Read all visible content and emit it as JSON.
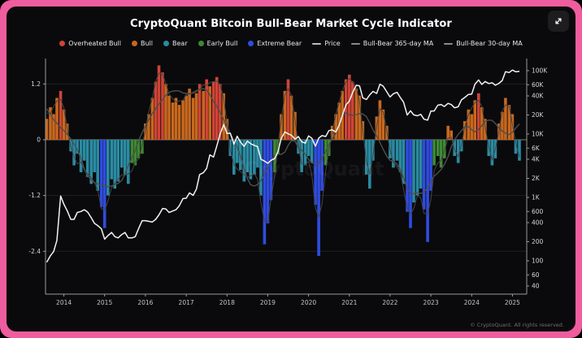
{
  "theme": {
    "frame_pink": "#ef5d9f",
    "panel_bg": "#0a0a0c",
    "price_line": "#f3f3f3",
    "ma_line": "#4e4e4e"
  },
  "watermark": "CryptoQuant",
  "footer": {
    "copyright": "© CryptoQuant. All rights reserved."
  },
  "legend": [
    {
      "key": "ob",
      "label": "Overheated Bull",
      "color": "#cf4436",
      "type": "dot"
    },
    {
      "key": "b",
      "label": "Bull",
      "color": "#c8681e",
      "type": "dot"
    },
    {
      "key": "br",
      "label": "Bear",
      "color": "#2a8ba2",
      "type": "dot"
    },
    {
      "key": "eb",
      "label": "Early Bull",
      "color": "#3e8a33",
      "type": "dot"
    },
    {
      "key": "xb",
      "label": "Extreme Bear",
      "color": "#2f4ce0",
      "type": "dot"
    },
    {
      "key": "price",
      "label": "Price",
      "color": "#bdbdbd",
      "type": "line"
    },
    {
      "key": "ma365",
      "label": "Bull-Bear 365-day MA",
      "color": "#8a8a8a",
      "type": "line"
    },
    {
      "key": "ma30",
      "label": "Bull-Bear 30-day MA",
      "color": "#8a8a8a",
      "type": "line"
    }
  ],
  "chart_data": {
    "type": "combo",
    "components": [
      "bar",
      "line"
    ],
    "title": "CryptoQuant Bitcoin Bull-Bear Market Cycle Indicator",
    "x_axis": {
      "ticks": [
        2014,
        2015,
        2016,
        2017,
        2018,
        2019,
        2020,
        2021,
        2022,
        2023,
        2024,
        2025
      ],
      "range": [
        2013.55,
        2025.35
      ]
    },
    "left_axis": {
      "ticks": [
        1.2,
        0,
        -1.2,
        -2.4
      ],
      "range": [
        -3.3,
        1.7
      ]
    },
    "right_axis": {
      "scale": "log",
      "range": [
        30,
        147000
      ],
      "ticks": [
        [
          100000,
          "100K"
        ],
        [
          60000,
          "60K"
        ],
        [
          40000,
          "40K"
        ],
        [
          20000,
          "20K"
        ],
        [
          10000,
          "10K"
        ],
        [
          6000,
          "6K"
        ],
        [
          4000,
          "4K"
        ],
        [
          2000,
          "2K"
        ],
        [
          1000,
          "1K"
        ],
        [
          600,
          "600"
        ],
        [
          400,
          "400"
        ],
        [
          200,
          "200"
        ],
        [
          100,
          "100"
        ],
        [
          60,
          "60"
        ],
        [
          40,
          "40"
        ]
      ]
    },
    "colors": {
      "ob": "#cf4436",
      "b": "#c8681e",
      "br": "#2a8ba2",
      "eb": "#3e8a33",
      "xb": "#2f4ce0"
    },
    "ma_series": [
      {
        "name": "Bull-Bear 365-day MA",
        "smooth_window_points": 6
      },
      {
        "name": "Bull-Bear 30-day MA",
        "smooth_window_points": 1
      }
    ],
    "indicator_bars": [
      [
        2013.58,
        0.45,
        "b"
      ],
      [
        2013.67,
        0.7,
        "b"
      ],
      [
        2013.75,
        0.55,
        "b"
      ],
      [
        2013.83,
        0.9,
        "b"
      ],
      [
        2013.92,
        1.05,
        "ob"
      ],
      [
        2014.0,
        0.65,
        "b"
      ],
      [
        2014.08,
        0.35,
        "b"
      ],
      [
        2014.17,
        -0.25,
        "br"
      ],
      [
        2014.25,
        -0.55,
        "br"
      ],
      [
        2014.33,
        -0.3,
        "br"
      ],
      [
        2014.42,
        -0.7,
        "br"
      ],
      [
        2014.5,
        -0.45,
        "br"
      ],
      [
        2014.58,
        -0.8,
        "br"
      ],
      [
        2014.67,
        -0.95,
        "br"
      ],
      [
        2014.75,
        -0.7,
        "br"
      ],
      [
        2014.83,
        -1.1,
        "br"
      ],
      [
        2014.92,
        -1.45,
        "xb"
      ],
      [
        2015.0,
        -1.9,
        "xb"
      ],
      [
        2015.08,
        -1.2,
        "br"
      ],
      [
        2015.17,
        -0.85,
        "br"
      ],
      [
        2015.25,
        -1.05,
        "br"
      ],
      [
        2015.33,
        -0.9,
        "br"
      ],
      [
        2015.42,
        -0.6,
        "br"
      ],
      [
        2015.5,
        -0.75,
        "br"
      ],
      [
        2015.58,
        -0.95,
        "br"
      ],
      [
        2015.67,
        -0.5,
        "eb"
      ],
      [
        2015.75,
        -0.55,
        "eb"
      ],
      [
        2015.83,
        -0.4,
        "eb"
      ],
      [
        2015.92,
        -0.3,
        "eb"
      ],
      [
        2016.0,
        0.35,
        "b"
      ],
      [
        2016.08,
        0.55,
        "b"
      ],
      [
        2016.17,
        0.9,
        "b"
      ],
      [
        2016.25,
        1.25,
        "ob"
      ],
      [
        2016.33,
        1.6,
        "ob"
      ],
      [
        2016.42,
        1.45,
        "ob"
      ],
      [
        2016.5,
        1.2,
        "b"
      ],
      [
        2016.58,
        0.95,
        "b"
      ],
      [
        2016.67,
        0.8,
        "b"
      ],
      [
        2016.75,
        0.9,
        "b"
      ],
      [
        2016.83,
        0.75,
        "b"
      ],
      [
        2016.92,
        0.85,
        "b"
      ],
      [
        2017.0,
        0.95,
        "b"
      ],
      [
        2017.08,
        1.1,
        "b"
      ],
      [
        2017.17,
        0.9,
        "b"
      ],
      [
        2017.25,
        1.0,
        "b"
      ],
      [
        2017.33,
        1.2,
        "ob"
      ],
      [
        2017.42,
        1.05,
        "b"
      ],
      [
        2017.5,
        1.3,
        "ob"
      ],
      [
        2017.58,
        1.15,
        "b"
      ],
      [
        2017.67,
        1.25,
        "ob"
      ],
      [
        2017.75,
        1.35,
        "ob"
      ],
      [
        2017.83,
        1.2,
        "ob"
      ],
      [
        2017.92,
        1.0,
        "b"
      ],
      [
        2018.0,
        0.45,
        "b"
      ],
      [
        2018.08,
        -0.35,
        "br"
      ],
      [
        2018.17,
        -0.75,
        "br"
      ],
      [
        2018.25,
        -0.5,
        "br"
      ],
      [
        2018.33,
        -0.65,
        "br"
      ],
      [
        2018.42,
        -0.9,
        "br"
      ],
      [
        2018.5,
        -0.7,
        "br"
      ],
      [
        2018.58,
        -0.85,
        "br"
      ],
      [
        2018.67,
        -0.75,
        "br"
      ],
      [
        2018.75,
        -0.6,
        "br"
      ],
      [
        2018.83,
        -1.2,
        "br"
      ],
      [
        2018.92,
        -2.25,
        "xb"
      ],
      [
        2019.0,
        -1.8,
        "xb"
      ],
      [
        2019.08,
        -1.3,
        "xb"
      ],
      [
        2019.17,
        -0.7,
        "eb"
      ],
      [
        2019.25,
        -0.3,
        "eb"
      ],
      [
        2019.33,
        0.55,
        "b"
      ],
      [
        2019.42,
        1.05,
        "b"
      ],
      [
        2019.5,
        1.3,
        "ob"
      ],
      [
        2019.58,
        0.95,
        "b"
      ],
      [
        2019.67,
        0.6,
        "b"
      ],
      [
        2019.75,
        -0.3,
        "br"
      ],
      [
        2019.83,
        -0.7,
        "br"
      ],
      [
        2019.92,
        -0.55,
        "br"
      ],
      [
        2020.0,
        -0.35,
        "br"
      ],
      [
        2020.08,
        -0.5,
        "br"
      ],
      [
        2020.17,
        -1.4,
        "xb"
      ],
      [
        2020.25,
        -2.5,
        "xb"
      ],
      [
        2020.33,
        -1.1,
        "xb"
      ],
      [
        2020.42,
        -0.55,
        "eb"
      ],
      [
        2020.5,
        -0.35,
        "eb"
      ],
      [
        2020.58,
        0.3,
        "b"
      ],
      [
        2020.67,
        0.55,
        "b"
      ],
      [
        2020.75,
        0.8,
        "b"
      ],
      [
        2020.83,
        1.05,
        "b"
      ],
      [
        2020.92,
        1.3,
        "ob"
      ],
      [
        2021.0,
        1.4,
        "ob"
      ],
      [
        2021.08,
        1.25,
        "ob"
      ],
      [
        2021.17,
        1.1,
        "b"
      ],
      [
        2021.25,
        0.95,
        "b"
      ],
      [
        2021.33,
        0.4,
        "b"
      ],
      [
        2021.42,
        -0.75,
        "br"
      ],
      [
        2021.5,
        -1.05,
        "br"
      ],
      [
        2021.58,
        -0.45,
        "br"
      ],
      [
        2021.67,
        0.5,
        "b"
      ],
      [
        2021.75,
        0.85,
        "b"
      ],
      [
        2021.83,
        0.65,
        "b"
      ],
      [
        2021.92,
        0.3,
        "b"
      ],
      [
        2022.0,
        -0.4,
        "br"
      ],
      [
        2022.08,
        -0.6,
        "br"
      ],
      [
        2022.17,
        -0.45,
        "br"
      ],
      [
        2022.25,
        -0.7,
        "br"
      ],
      [
        2022.33,
        -0.95,
        "br"
      ],
      [
        2022.42,
        -1.55,
        "xb"
      ],
      [
        2022.5,
        -1.9,
        "xb"
      ],
      [
        2022.58,
        -1.35,
        "br"
      ],
      [
        2022.67,
        -1.2,
        "br"
      ],
      [
        2022.75,
        -1.05,
        "br"
      ],
      [
        2022.83,
        -1.5,
        "xb"
      ],
      [
        2022.92,
        -2.2,
        "xb"
      ],
      [
        2023.0,
        -1.1,
        "xb"
      ],
      [
        2023.08,
        -0.55,
        "eb"
      ],
      [
        2023.17,
        -0.35,
        "eb"
      ],
      [
        2023.25,
        -0.6,
        "eb"
      ],
      [
        2023.33,
        -0.4,
        "eb"
      ],
      [
        2023.42,
        0.3,
        "b"
      ],
      [
        2023.5,
        0.2,
        "b"
      ],
      [
        2023.58,
        -0.35,
        "br"
      ],
      [
        2023.67,
        -0.5,
        "br"
      ],
      [
        2023.75,
        -0.25,
        "br"
      ],
      [
        2023.83,
        0.4,
        "b"
      ],
      [
        2023.92,
        0.65,
        "b"
      ],
      [
        2024.0,
        0.55,
        "b"
      ],
      [
        2024.08,
        0.85,
        "b"
      ],
      [
        2024.17,
        1.0,
        "ob"
      ],
      [
        2024.25,
        0.7,
        "b"
      ],
      [
        2024.33,
        0.45,
        "b"
      ],
      [
        2024.42,
        -0.35,
        "br"
      ],
      [
        2024.5,
        -0.55,
        "br"
      ],
      [
        2024.58,
        -0.4,
        "br"
      ],
      [
        2024.67,
        0.35,
        "b"
      ],
      [
        2024.75,
        0.6,
        "b"
      ],
      [
        2024.83,
        0.9,
        "b"
      ],
      [
        2024.92,
        0.75,
        "b"
      ],
      [
        2025.0,
        0.55,
        "b"
      ],
      [
        2025.08,
        -0.3,
        "br"
      ],
      [
        2025.17,
        -0.45,
        "br"
      ]
    ],
    "price_line": [
      [
        2013.58,
        95
      ],
      [
        2013.67,
        120
      ],
      [
        2013.75,
        140
      ],
      [
        2013.83,
        210
      ],
      [
        2013.92,
        1050
      ],
      [
        2014.0,
        780
      ],
      [
        2014.08,
        620
      ],
      [
        2014.17,
        450
      ],
      [
        2014.25,
        450
      ],
      [
        2014.33,
        580
      ],
      [
        2014.42,
        600
      ],
      [
        2014.5,
        640
      ],
      [
        2014.58,
        590
      ],
      [
        2014.67,
        480
      ],
      [
        2014.75,
        390
      ],
      [
        2014.83,
        360
      ],
      [
        2014.92,
        320
      ],
      [
        2015.0,
        220
      ],
      [
        2015.08,
        250
      ],
      [
        2015.17,
        280
      ],
      [
        2015.25,
        240
      ],
      [
        2015.33,
        230
      ],
      [
        2015.42,
        260
      ],
      [
        2015.5,
        280
      ],
      [
        2015.58,
        230
      ],
      [
        2015.67,
        230
      ],
      [
        2015.75,
        240
      ],
      [
        2015.83,
        320
      ],
      [
        2015.92,
        430
      ],
      [
        2016.0,
        430
      ],
      [
        2016.08,
        420
      ],
      [
        2016.17,
        410
      ],
      [
        2016.25,
        450
      ],
      [
        2016.33,
        530
      ],
      [
        2016.42,
        670
      ],
      [
        2016.5,
        660
      ],
      [
        2016.58,
        580
      ],
      [
        2016.67,
        610
      ],
      [
        2016.75,
        640
      ],
      [
        2016.83,
        740
      ],
      [
        2016.92,
        960
      ],
      [
        2017.0,
        970
      ],
      [
        2017.08,
        1180
      ],
      [
        2017.17,
        1080
      ],
      [
        2017.25,
        1350
      ],
      [
        2017.33,
        2300
      ],
      [
        2017.42,
        2450
      ],
      [
        2017.5,
        2870
      ],
      [
        2017.58,
        4700
      ],
      [
        2017.67,
        4340
      ],
      [
        2017.75,
        6470
      ],
      [
        2017.83,
        9900
      ],
      [
        2017.92,
        14100
      ],
      [
        2018.0,
        10200
      ],
      [
        2018.08,
        10300
      ],
      [
        2018.17,
        6930
      ],
      [
        2018.25,
        9240
      ],
      [
        2018.33,
        7490
      ],
      [
        2018.42,
        6400
      ],
      [
        2018.5,
        7730
      ],
      [
        2018.58,
        7030
      ],
      [
        2018.67,
        6630
      ],
      [
        2018.75,
        6320
      ],
      [
        2018.83,
        4020
      ],
      [
        2018.92,
        3740
      ],
      [
        2019.0,
        3460
      ],
      [
        2019.08,
        3850
      ],
      [
        2019.17,
        4100
      ],
      [
        2019.25,
        5320
      ],
      [
        2019.33,
        8560
      ],
      [
        2019.42,
        10800
      ],
      [
        2019.5,
        10100
      ],
      [
        2019.58,
        9600
      ],
      [
        2019.67,
        8300
      ],
      [
        2019.75,
        9150
      ],
      [
        2019.83,
        7560
      ],
      [
        2019.92,
        7190
      ],
      [
        2020.0,
        9350
      ],
      [
        2020.08,
        8600
      ],
      [
        2020.17,
        6440
      ],
      [
        2020.25,
        8620
      ],
      [
        2020.33,
        9450
      ],
      [
        2020.42,
        9140
      ],
      [
        2020.5,
        11350
      ],
      [
        2020.58,
        11650
      ],
      [
        2020.67,
        10780
      ],
      [
        2020.75,
        13800
      ],
      [
        2020.83,
        19700
      ],
      [
        2020.92,
        29000
      ],
      [
        2021.0,
        33100
      ],
      [
        2021.08,
        45200
      ],
      [
        2021.17,
        58800
      ],
      [
        2021.25,
        57750
      ],
      [
        2021.33,
        37330
      ],
      [
        2021.42,
        35040
      ],
      [
        2021.5,
        41460
      ],
      [
        2021.58,
        47130
      ],
      [
        2021.67,
        43790
      ],
      [
        2021.75,
        61320
      ],
      [
        2021.83,
        57000
      ],
      [
        2021.92,
        46220
      ],
      [
        2022.0,
        38480
      ],
      [
        2022.08,
        43190
      ],
      [
        2022.17,
        45540
      ],
      [
        2022.25,
        37630
      ],
      [
        2022.33,
        31790
      ],
      [
        2022.42,
        19980
      ],
      [
        2022.5,
        23290
      ],
      [
        2022.58,
        20050
      ],
      [
        2022.67,
        19430
      ],
      [
        2022.75,
        20490
      ],
      [
        2022.83,
        17170
      ],
      [
        2022.92,
        16550
      ],
      [
        2023.0,
        23130
      ],
      [
        2023.08,
        23140
      ],
      [
        2023.17,
        28480
      ],
      [
        2023.25,
        29250
      ],
      [
        2023.33,
        27220
      ],
      [
        2023.42,
        30480
      ],
      [
        2023.5,
        29230
      ],
      [
        2023.58,
        25930
      ],
      [
        2023.67,
        26970
      ],
      [
        2023.75,
        34660
      ],
      [
        2023.83,
        37720
      ],
      [
        2023.92,
        42270
      ],
      [
        2024.0,
        42580
      ],
      [
        2024.08,
        61200
      ],
      [
        2024.17,
        71330
      ],
      [
        2024.25,
        60640
      ],
      [
        2024.33,
        67540
      ],
      [
        2024.42,
        62680
      ],
      [
        2024.5,
        64620
      ],
      [
        2024.58,
        58970
      ],
      [
        2024.67,
        63330
      ],
      [
        2024.75,
        70220
      ],
      [
        2024.83,
        96450
      ],
      [
        2024.92,
        93430
      ],
      [
        2025.0,
        102400
      ],
      [
        2025.08,
        96000
      ],
      [
        2025.17,
        98000
      ]
    ]
  }
}
